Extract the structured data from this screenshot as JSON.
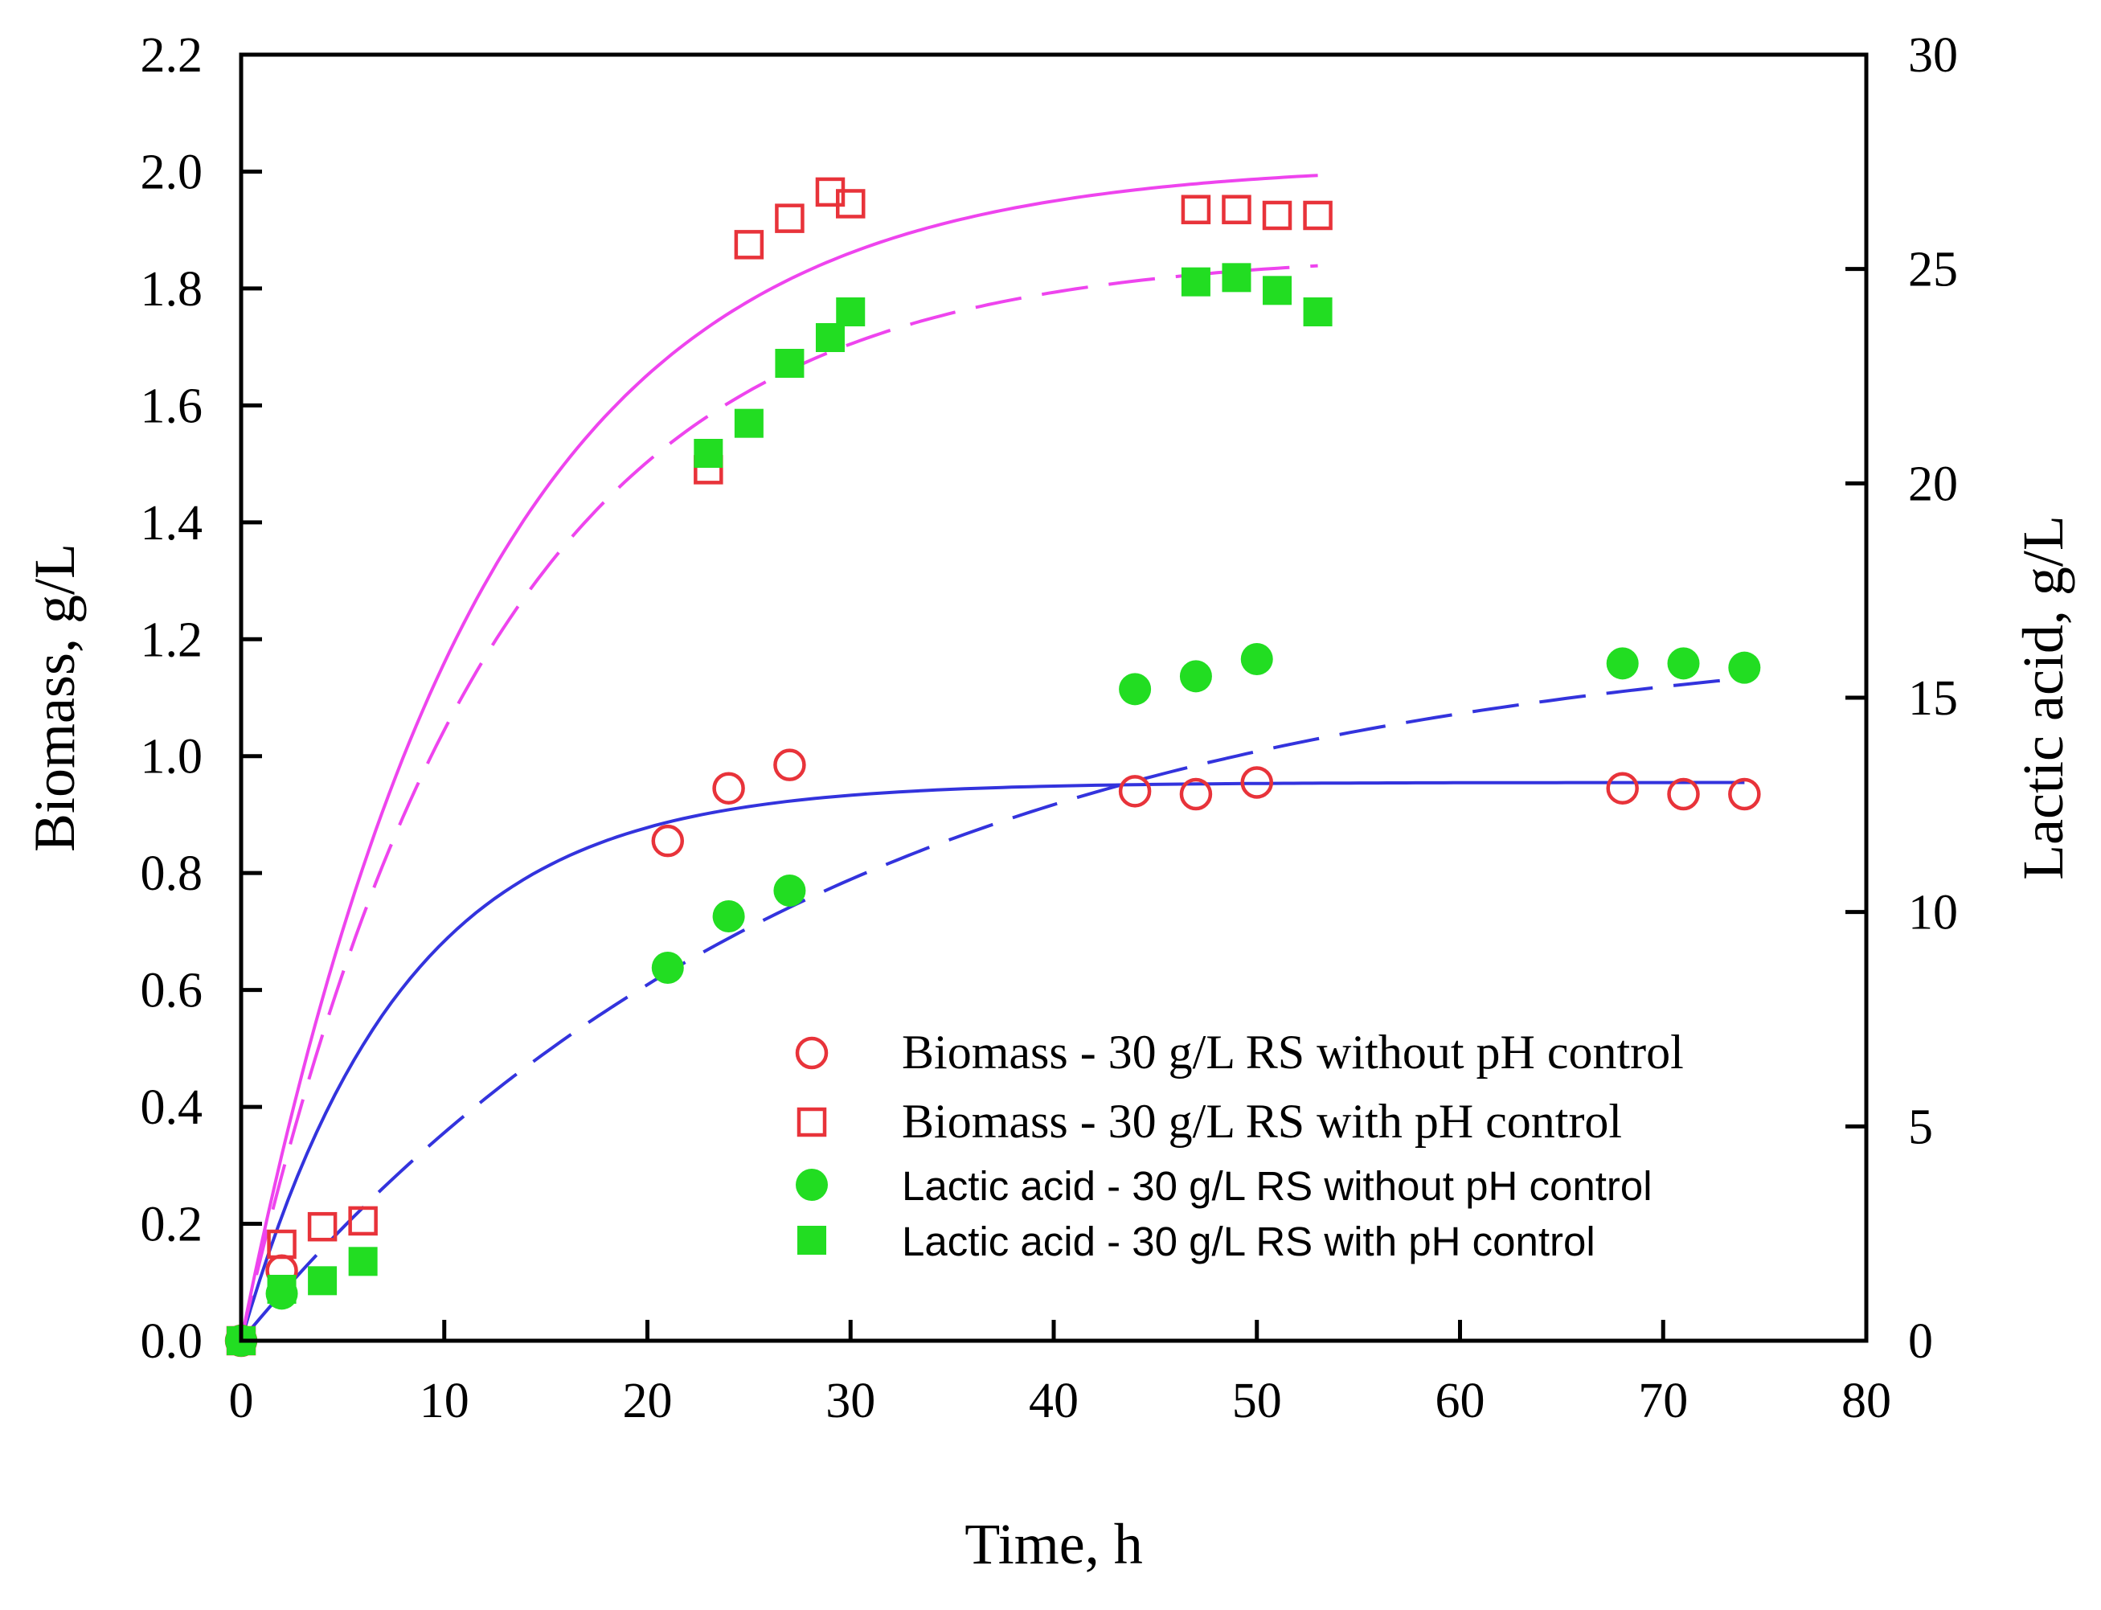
{
  "chart_data": {
    "type": "scatter",
    "xlabel": "Time, h",
    "ylabel": "Biomass, g/L",
    "y2label": "Lactic acid, g/L",
    "xlim": [
      0,
      80
    ],
    "ylim": [
      0,
      2.2
    ],
    "y2lim": [
      0,
      30
    ],
    "xticks": [
      0,
      10,
      20,
      30,
      40,
      50,
      60,
      70,
      80
    ],
    "yticks": [
      "0.0",
      "0.2",
      "0.4",
      "0.6",
      "0.8",
      "1.0",
      "1.2",
      "1.4",
      "1.6",
      "1.8",
      "2.0",
      "2.2"
    ],
    "y2ticks": [
      0,
      5,
      10,
      15,
      20,
      25,
      30
    ],
    "grid": false,
    "legend_position": "bottom-right",
    "colors": {
      "biomass": "#e8333a",
      "lactic": "#22dd22",
      "fit_magenta": "#ee44ee",
      "fit_blue": "#3333dd"
    },
    "series": [
      {
        "name": "Biomass - 30 g/L RS without pH control",
        "axis": "left",
        "marker": "open-circle",
        "x": [
          0,
          2,
          21,
          24,
          27,
          44,
          47,
          50,
          68,
          71,
          74
        ],
        "y": [
          0.0,
          0.12,
          0.855,
          0.945,
          0.985,
          0.94,
          0.935,
          0.955,
          0.945,
          0.935,
          0.935
        ]
      },
      {
        "name": "Biomass - 30 g/L RS with pH control",
        "axis": "left",
        "marker": "open-square",
        "x": [
          0,
          2,
          4,
          6,
          23,
          25,
          27,
          29,
          30,
          47,
          49,
          51,
          53
        ],
        "y": [
          0.0,
          0.165,
          0.195,
          0.205,
          1.49,
          1.875,
          1.92,
          1.965,
          1.945,
          1.935,
          1.935,
          1.925,
          1.925
        ]
      },
      {
        "name": "Lactic acid - 30 g/L RS without pH control",
        "axis": "right",
        "marker": "filled-circle",
        "x": [
          0,
          2,
          21,
          24,
          27,
          44,
          47,
          50,
          68,
          71,
          74
        ],
        "y": [
          0.0,
          1.1,
          8.7,
          9.9,
          10.5,
          15.2,
          15.5,
          15.9,
          15.8,
          15.8,
          15.7
        ]
      },
      {
        "name": "Lactic acid - 30 g/L RS with pH control",
        "axis": "right",
        "marker": "filled-square",
        "x": [
          0,
          2,
          4,
          6,
          23,
          25,
          27,
          29,
          30,
          47,
          49,
          51,
          53
        ],
        "y": [
          0.0,
          1.2,
          1.4,
          1.85,
          20.7,
          21.4,
          22.8,
          23.4,
          24.0,
          24.7,
          24.8,
          24.5,
          24.0
        ]
      }
    ],
    "fits": [
      {
        "axis": "left",
        "style": "solid",
        "color": "#ee44ee",
        "xmax": 53,
        "ymax": 2.015,
        "k": 0.0857
      },
      {
        "axis": "left",
        "style": "solid",
        "color": "#3333dd",
        "xmax": 74,
        "ymax": 0.955,
        "k": 0.1258
      },
      {
        "axis": "right",
        "style": "dashed",
        "color": "#ee44ee",
        "xmax": 53,
        "ymax": 25.4,
        "k": 0.0823
      },
      {
        "axis": "right",
        "style": "dashed",
        "color": "#3333dd",
        "xmax": 74,
        "ymax": 16.8,
        "k": 0.0341
      }
    ]
  }
}
